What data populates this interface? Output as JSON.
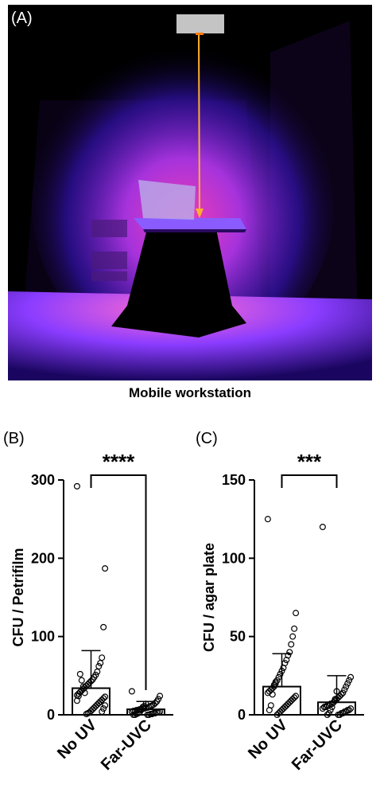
{
  "panel_a": {
    "label": "(A)",
    "caption": "Mobile workstation",
    "colors": {
      "glow": "#ff2fb0",
      "violet": "#6a1cff",
      "beam": "#ffb02e"
    }
  },
  "chart_data": [
    {
      "panel_label": "(B)",
      "type": "bar",
      "categories": [
        "No UV",
        "Far-UVC"
      ],
      "values": [
        34,
        7
      ],
      "error_high": [
        82,
        17
      ],
      "ylabel": "CFU / Petrifilm",
      "ylim": [
        0,
        300
      ],
      "yticks": [
        0,
        100,
        200,
        300
      ],
      "significance": "****",
      "points": [
        [
          292,
          187,
          112,
          73,
          66,
          62,
          55,
          51,
          48,
          45,
          43,
          41,
          39,
          37,
          35,
          33,
          31,
          29,
          27,
          25,
          23,
          21,
          19,
          17,
          15,
          13,
          11,
          9,
          7,
          5,
          3,
          2,
          1,
          28,
          36,
          44,
          52,
          24,
          18,
          12,
          8,
          4
        ],
        [
          30,
          24,
          20,
          17,
          15,
          13,
          12,
          11,
          10,
          9,
          9,
          8,
          8,
          7,
          7,
          6,
          6,
          5,
          5,
          4,
          4,
          3,
          3,
          2,
          2,
          1,
          1,
          0,
          0,
          14,
          11,
          10,
          6,
          3,
          2,
          1,
          0,
          0
        ]
      ],
      "grid": false
    },
    {
      "panel_label": "(C)",
      "type": "bar",
      "categories": [
        "No UV",
        "Far-UVC"
      ],
      "values": [
        18,
        8
      ],
      "error_high": [
        39,
        25
      ],
      "ylabel": "CFU / agar plate",
      "ylim": [
        0,
        150
      ],
      "yticks": [
        0,
        50,
        100,
        150
      ],
      "significance": "***",
      "points": [
        [
          125,
          65,
          55,
          50,
          45,
          40,
          38,
          35,
          33,
          30,
          28,
          26,
          24,
          22,
          20,
          18,
          17,
          16,
          15,
          14,
          12,
          11,
          10,
          9,
          8,
          7,
          6,
          5,
          4,
          3,
          2,
          1,
          0,
          21,
          19,
          13,
          6,
          3
        ],
        [
          120,
          24,
          22,
          20,
          18,
          16,
          14,
          13,
          12,
          11,
          10,
          9,
          8,
          7,
          7,
          6,
          6,
          5,
          5,
          4,
          4,
          3,
          3,
          2,
          2,
          1,
          1,
          0,
          0,
          15,
          10,
          8,
          5,
          3,
          1,
          0
        ]
      ],
      "grid": false
    }
  ]
}
